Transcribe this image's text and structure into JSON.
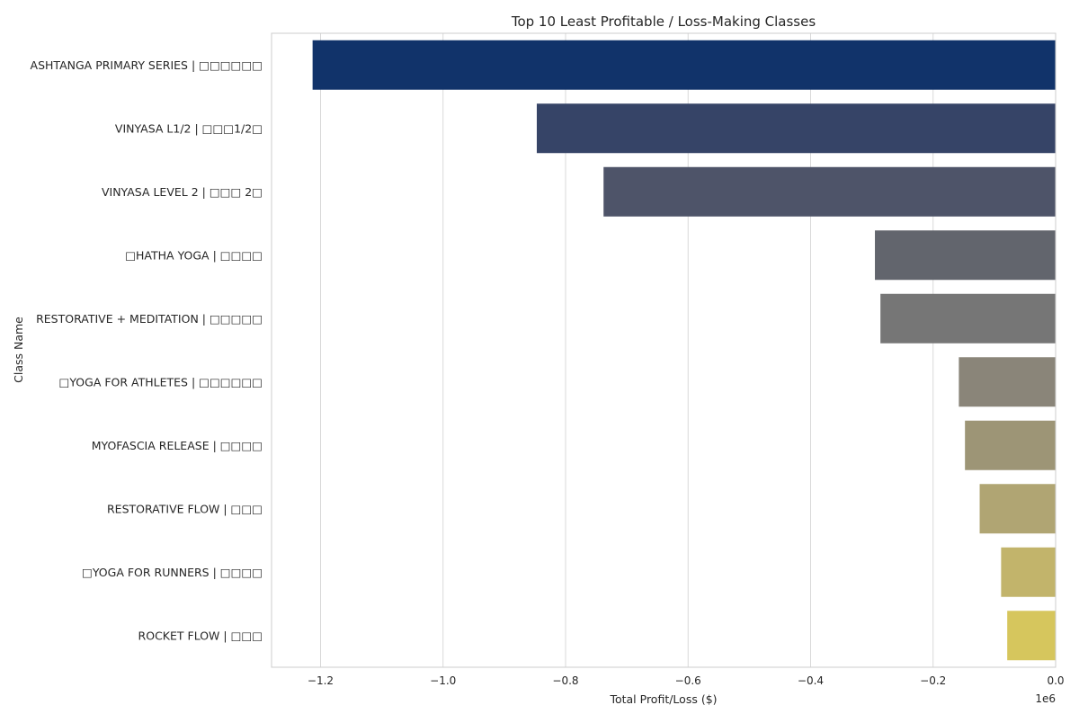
{
  "chart_data": {
    "type": "bar",
    "orientation": "horizontal",
    "title": "Top 10 Least Profitable / Loss-Making Classes",
    "xlabel": "Total Profit/Loss ($)",
    "ylabel": "Class Name",
    "x_offset_text": "1e6",
    "xlim": [
      -1.28,
      0
    ],
    "x_ticks": [
      -1.2,
      -1.0,
      -0.8,
      -0.6,
      -0.4,
      -0.2,
      0.0
    ],
    "x_tick_labels": [
      "−1.2",
      "−1.0",
      "−0.8",
      "−0.6",
      "−0.4",
      "−0.2",
      "0.0"
    ],
    "grid": "vertical",
    "categories": [
      "ASHTANGA PRIMARY SERIES | □□□□□□",
      "VINYASA L1/2 | □□□1/2□",
      "VINYASA LEVEL 2 | □□□ 2□",
      "□HATHA YOGA | □□□□",
      "RESTORATIVE + MEDITATION | □□□□□",
      "□YOGA FOR ATHLETES | □□□□□□",
      "MYOFASCIA RELEASE | □□□□",
      "RESTORATIVE FLOW | □□□",
      "□YOGA FOR RUNNERS | □□□□",
      "ROCKET FLOW | □□□"
    ],
    "values": [
      -1.213,
      -0.847,
      -0.738,
      -0.295,
      -0.286,
      -0.158,
      -0.148,
      -0.124,
      -0.089,
      -0.079
    ],
    "colors": [
      "#11336a",
      "#364467",
      "#4e5469",
      "#62656d",
      "#767676",
      "#8a8579",
      "#9d9576",
      "#b0a573",
      "#c2b46b",
      "#d6c65d"
    ]
  }
}
